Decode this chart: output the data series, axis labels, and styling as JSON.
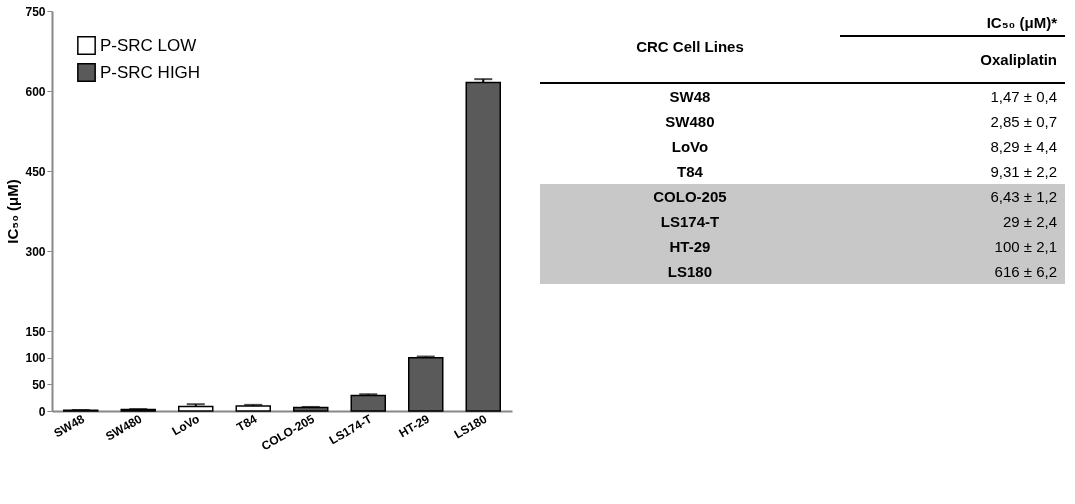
{
  "chart_data": [
    {
      "type": "bar",
      "ylabel": "IC₅₀ (μM)",
      "categories": [
        "SW48",
        "SW480",
        "LoVo",
        "T84",
        "COLO-205",
        "LS174-T",
        "HT-29",
        "LS180"
      ],
      "series": [
        {
          "name": "P-SRC LOW",
          "color": "#ffffff",
          "values": [
            1.5,
            2.9,
            8.3,
            9.3,
            null,
            null,
            null,
            null
          ],
          "errors": [
            0.4,
            0.7,
            4.4,
            2.2,
            null,
            null,
            null,
            null
          ]
        },
        {
          "name": "P-SRC HIGH",
          "color": "#5a5a5a",
          "values": [
            null,
            null,
            null,
            null,
            6.4,
            29,
            100,
            616
          ],
          "errors": [
            null,
            null,
            null,
            null,
            1.2,
            2.4,
            2.1,
            6.2
          ]
        }
      ],
      "ylim": [
        0,
        750
      ],
      "yticks": [
        0,
        50,
        100,
        150,
        300,
        450,
        600,
        750
      ],
      "legend": "top left"
    },
    {
      "type": "other",
      "annotations": [
        "IC₅₀ (μM)*",
        "CRC Cell Lines",
        "Oxaliplatin",
        "SW48",
        "1,47 ± 0,4",
        "SW480",
        "2,85 ± 0,7",
        "LoVo",
        "8,29 ± 4,4",
        "T84",
        "9,31 ± 2,2",
        "COLO-205",
        "6,43 ± 1,2",
        "LS174-T",
        "29 ± 2,4",
        "HT-29",
        "100  ± 2,1",
        "LS180",
        "616 ± 6,2"
      ]
    }
  ]
}
